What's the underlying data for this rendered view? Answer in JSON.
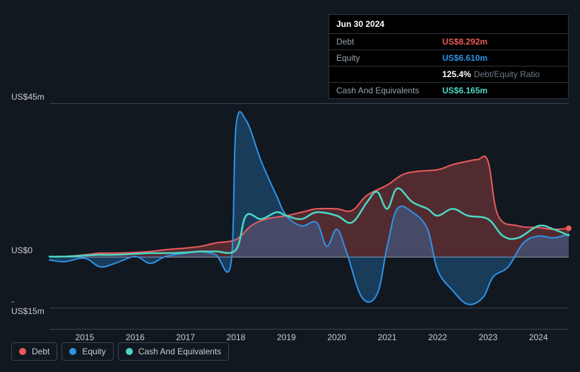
{
  "tooltip": {
    "date": "Jun 30 2024",
    "rows": [
      {
        "label": "Debt",
        "value": "US$8.292m",
        "color": "red"
      },
      {
        "label": "Equity",
        "value": "US$6.610m",
        "color": "blue"
      },
      {
        "label": "",
        "value": "125.4%",
        "sublabel": "Debt/Equity Ratio",
        "color": "white"
      },
      {
        "label": "Cash And Equivalents",
        "value": "US$6.165m",
        "color": "teal"
      }
    ]
  },
  "chart": {
    "type": "area-line",
    "background_color": "#111820",
    "grid_color": "#3a4652",
    "zero_line_color": "#97a3af",
    "text_color": "#ccc",
    "label_fontsize": 12,
    "yaxis": {
      "min": -15,
      "max": 45,
      "ticks": [
        {
          "v": 45,
          "label": "US$45m"
        },
        {
          "v": 0,
          "label": "US$0"
        },
        {
          "v": -15,
          "label": "-US$15m"
        }
      ]
    },
    "xaxis": {
      "min": 2014.3,
      "max": 2024.6,
      "ticks": [
        2015,
        2016,
        2017,
        2018,
        2019,
        2020,
        2021,
        2022,
        2023,
        2024
      ]
    },
    "series": {
      "debt": {
        "label": "Debt",
        "stroke": "#eb5b5b",
        "fill": "rgba(235,91,91,0.30)",
        "stroke_width": 2,
        "type": "area",
        "points": [
          [
            2014.3,
            0
          ],
          [
            2014.6,
            0
          ],
          [
            2015.0,
            0.5
          ],
          [
            2015.3,
            1
          ],
          [
            2015.6,
            1
          ],
          [
            2016.0,
            1.2
          ],
          [
            2016.3,
            1.5
          ],
          [
            2016.6,
            2
          ],
          [
            2017.0,
            2.5
          ],
          [
            2017.3,
            3
          ],
          [
            2017.6,
            4
          ],
          [
            2018.0,
            5
          ],
          [
            2018.3,
            9
          ],
          [
            2018.6,
            11
          ],
          [
            2019.0,
            12
          ],
          [
            2019.3,
            13
          ],
          [
            2019.6,
            14
          ],
          [
            2020.0,
            14
          ],
          [
            2020.3,
            13.5
          ],
          [
            2020.6,
            18
          ],
          [
            2021.0,
            21
          ],
          [
            2021.3,
            24
          ],
          [
            2021.6,
            25
          ],
          [
            2022.0,
            25.5
          ],
          [
            2022.3,
            27
          ],
          [
            2022.6,
            28
          ],
          [
            2022.8,
            28.5
          ],
          [
            2023.0,
            28
          ],
          [
            2023.2,
            12
          ],
          [
            2023.6,
            9
          ],
          [
            2024.0,
            8.5
          ],
          [
            2024.3,
            8
          ],
          [
            2024.6,
            8.3
          ]
        ]
      },
      "equity": {
        "label": "Equity",
        "stroke": "#2e93e6",
        "fill": "rgba(46,147,230,0.30)",
        "stroke_width": 2,
        "type": "area",
        "points": [
          [
            2014.3,
            -1
          ],
          [
            2014.6,
            -1.5
          ],
          [
            2015.0,
            -0.5
          ],
          [
            2015.3,
            -3
          ],
          [
            2015.6,
            -2
          ],
          [
            2016.0,
            0
          ],
          [
            2016.3,
            -2
          ],
          [
            2016.6,
            0
          ],
          [
            2017.0,
            1
          ],
          [
            2017.3,
            1.5
          ],
          [
            2017.6,
            0.5
          ],
          [
            2017.9,
            -2
          ],
          [
            2018.0,
            38
          ],
          [
            2018.2,
            40
          ],
          [
            2018.5,
            28
          ],
          [
            2018.8,
            18
          ],
          [
            2019.0,
            12
          ],
          [
            2019.3,
            9
          ],
          [
            2019.6,
            10
          ],
          [
            2019.8,
            3
          ],
          [
            2020.0,
            8
          ],
          [
            2020.2,
            1
          ],
          [
            2020.5,
            -12
          ],
          [
            2020.8,
            -11
          ],
          [
            2021.0,
            3
          ],
          [
            2021.2,
            14
          ],
          [
            2021.5,
            13
          ],
          [
            2021.8,
            8
          ],
          [
            2022.0,
            -4
          ],
          [
            2022.3,
            -10
          ],
          [
            2022.6,
            -14
          ],
          [
            2022.9,
            -12
          ],
          [
            2023.1,
            -6
          ],
          [
            2023.4,
            -3
          ],
          [
            2023.7,
            4
          ],
          [
            2024.0,
            6
          ],
          [
            2024.3,
            5.5
          ],
          [
            2024.6,
            6.6
          ]
        ]
      },
      "cash": {
        "label": "Cash And Equivalents",
        "stroke": "#4cd7c4",
        "fill": "none",
        "stroke_width": 2.5,
        "type": "line",
        "points": [
          [
            2014.3,
            0
          ],
          [
            2014.6,
            0
          ],
          [
            2015.0,
            0.3
          ],
          [
            2015.3,
            0.5
          ],
          [
            2015.6,
            0.5
          ],
          [
            2016.0,
            0.8
          ],
          [
            2016.3,
            1
          ],
          [
            2016.6,
            1
          ],
          [
            2017.0,
            1.2
          ],
          [
            2017.3,
            1.5
          ],
          [
            2017.6,
            1.5
          ],
          [
            2018.0,
            2
          ],
          [
            2018.2,
            12
          ],
          [
            2018.5,
            11
          ],
          [
            2018.8,
            13
          ],
          [
            2019.0,
            12
          ],
          [
            2019.3,
            11
          ],
          [
            2019.6,
            13
          ],
          [
            2020.0,
            12
          ],
          [
            2020.3,
            10
          ],
          [
            2020.6,
            16
          ],
          [
            2020.8,
            19
          ],
          [
            2021.0,
            14
          ],
          [
            2021.2,
            20
          ],
          [
            2021.5,
            16
          ],
          [
            2021.8,
            14
          ],
          [
            2022.0,
            12
          ],
          [
            2022.3,
            14
          ],
          [
            2022.6,
            12
          ],
          [
            2023.0,
            11
          ],
          [
            2023.3,
            6
          ],
          [
            2023.6,
            5.5
          ],
          [
            2024.0,
            9
          ],
          [
            2024.3,
            8
          ],
          [
            2024.6,
            6.2
          ]
        ]
      }
    },
    "legend_items": [
      {
        "key": "debt",
        "label": "Debt",
        "color": "#eb5b5b"
      },
      {
        "key": "equity",
        "label": "Equity",
        "color": "#2e93e6"
      },
      {
        "key": "cash",
        "label": "Cash And Equivalents",
        "color": "#4cd7c4"
      }
    ]
  }
}
